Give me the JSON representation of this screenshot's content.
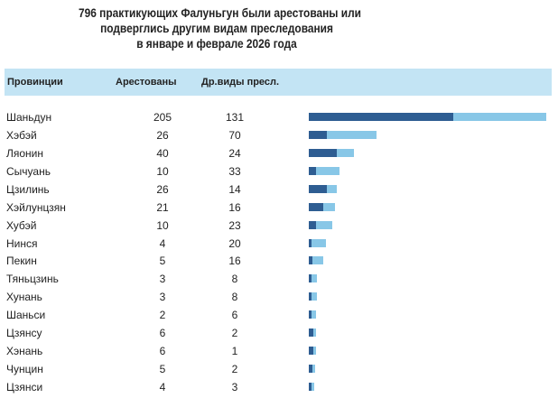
{
  "chart_data": {
    "type": "bar",
    "orientation": "horizontal",
    "stacked": true,
    "title": [
      "796 практикующих Фалуньгун были арестованы или",
      "подверглись другим видам преследования",
      "в январе и феврале 2026 года"
    ],
    "columns": [
      "Провинции",
      "Арестованы",
      "Др.виды пресл."
    ],
    "categories": [
      "Шаньдун",
      "Хэбэй",
      "Ляонин",
      "Сычуань",
      "Цзилинь",
      "Хэйлунцзян",
      "Хубэй",
      "Нинся",
      "Пекин",
      "Тяньцзинь",
      "Хунань",
      "Шаньси",
      "Цзянсу",
      "Хэнань",
      "Чунцин",
      "Цзянси"
    ],
    "series": [
      {
        "name": "Арестованы",
        "color": "#2e5d92",
        "values": [
          205,
          26,
          40,
          10,
          26,
          21,
          10,
          4,
          5,
          3,
          3,
          2,
          6,
          6,
          5,
          4
        ]
      },
      {
        "name": "Др.виды пресл.",
        "color": "#88c7e7",
        "values": [
          131,
          70,
          24,
          33,
          14,
          16,
          23,
          20,
          16,
          8,
          8,
          6,
          2,
          1,
          2,
          3
        ]
      }
    ],
    "header_color": "#c3e4f4",
    "grid": false
  }
}
